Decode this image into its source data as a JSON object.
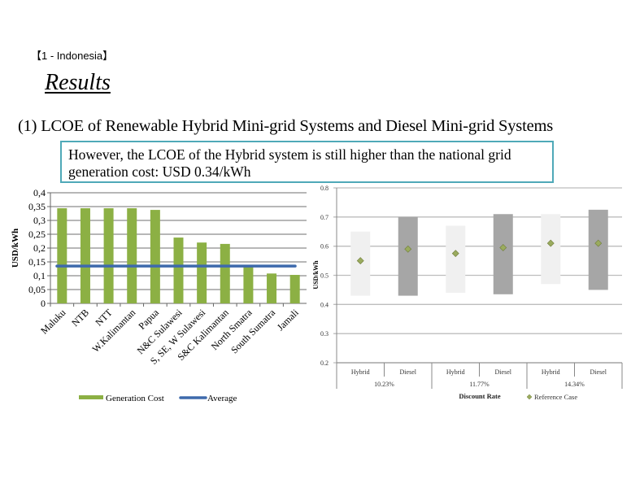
{
  "header": {
    "section_tag": "【1 - Indonesia】",
    "title": "Results",
    "subtitle": "(1) LCOE of Renewable Hybrid Mini-grid Systems and Diesel Mini-grid Systems"
  },
  "callout": {
    "text_line1": "However, the LCOE of the Hybrid system is still higher than the national grid",
    "text_line2": "generation cost: USD 0.34/kWh",
    "border_color": "#4fa9b8"
  },
  "chart_data": [
    {
      "type": "bar",
      "title": "",
      "xlabel": "",
      "ylabel": "USD/kWh",
      "ylim": [
        0,
        0.4
      ],
      "yticks": [
        "0",
        "0,05",
        "0,1",
        "0,15",
        "0,2",
        "0,25",
        "0,3",
        "0,35",
        "0,4"
      ],
      "grid": true,
      "legend_position": "bottom",
      "categories": [
        "Maluku",
        "NTB",
        "NTT",
        "W.Kalimantan",
        "Papua",
        "N&C Sulawesi",
        "S, SE, W Sulawesi",
        "S&C  Kalimantan",
        "North Smatra",
        "South Sumatra",
        "Jamali"
      ],
      "series": [
        {
          "name": "Generation Cost",
          "type": "bar",
          "color": "#8cb044",
          "values": [
            0.344,
            0.344,
            0.344,
            0.344,
            0.338,
            0.238,
            0.22,
            0.215,
            0.132,
            0.108,
            0.103
          ]
        },
        {
          "name": "Average",
          "type": "line",
          "color": "#3e6aac",
          "values": [
            0.135,
            0.135,
            0.135,
            0.135,
            0.135,
            0.135,
            0.135,
            0.135,
            0.135,
            0.135,
            0.135
          ]
        }
      ]
    },
    {
      "type": "bar",
      "subtype": "floating-range-with-marker",
      "title": "",
      "xlabel": "Discount Rate",
      "ylabel": "USD/kWh",
      "ylim": [
        0.2,
        0.8
      ],
      "yticks": [
        "0.2",
        "0.3",
        "0.4",
        "0.5",
        "0.6",
        "0.7",
        "0.8"
      ],
      "grid": true,
      "legend_position": "bottom",
      "groups": [
        "10.23%",
        "11.77%",
        "14.34%"
      ],
      "categories": [
        "Hybrid",
        "Diesel",
        "Hybrid",
        "Diesel",
        "Hybrid",
        "Diesel"
      ],
      "series": [
        {
          "name": "Range Low",
          "values": [
            0.43,
            0.43,
            0.44,
            0.435,
            0.47,
            0.45
          ]
        },
        {
          "name": "Range High",
          "values": [
            0.65,
            0.7,
            0.67,
            0.71,
            0.71,
            0.725
          ]
        },
        {
          "name": "Reference Case",
          "marker": "diamond",
          "color": "#9aab5e",
          "values": [
            0.55,
            0.59,
            0.575,
            0.595,
            0.61,
            0.61
          ]
        }
      ],
      "bar_colors": {
        "Hybrid": "#f0f0f0",
        "Diesel": "#a6a6a6"
      }
    }
  ]
}
